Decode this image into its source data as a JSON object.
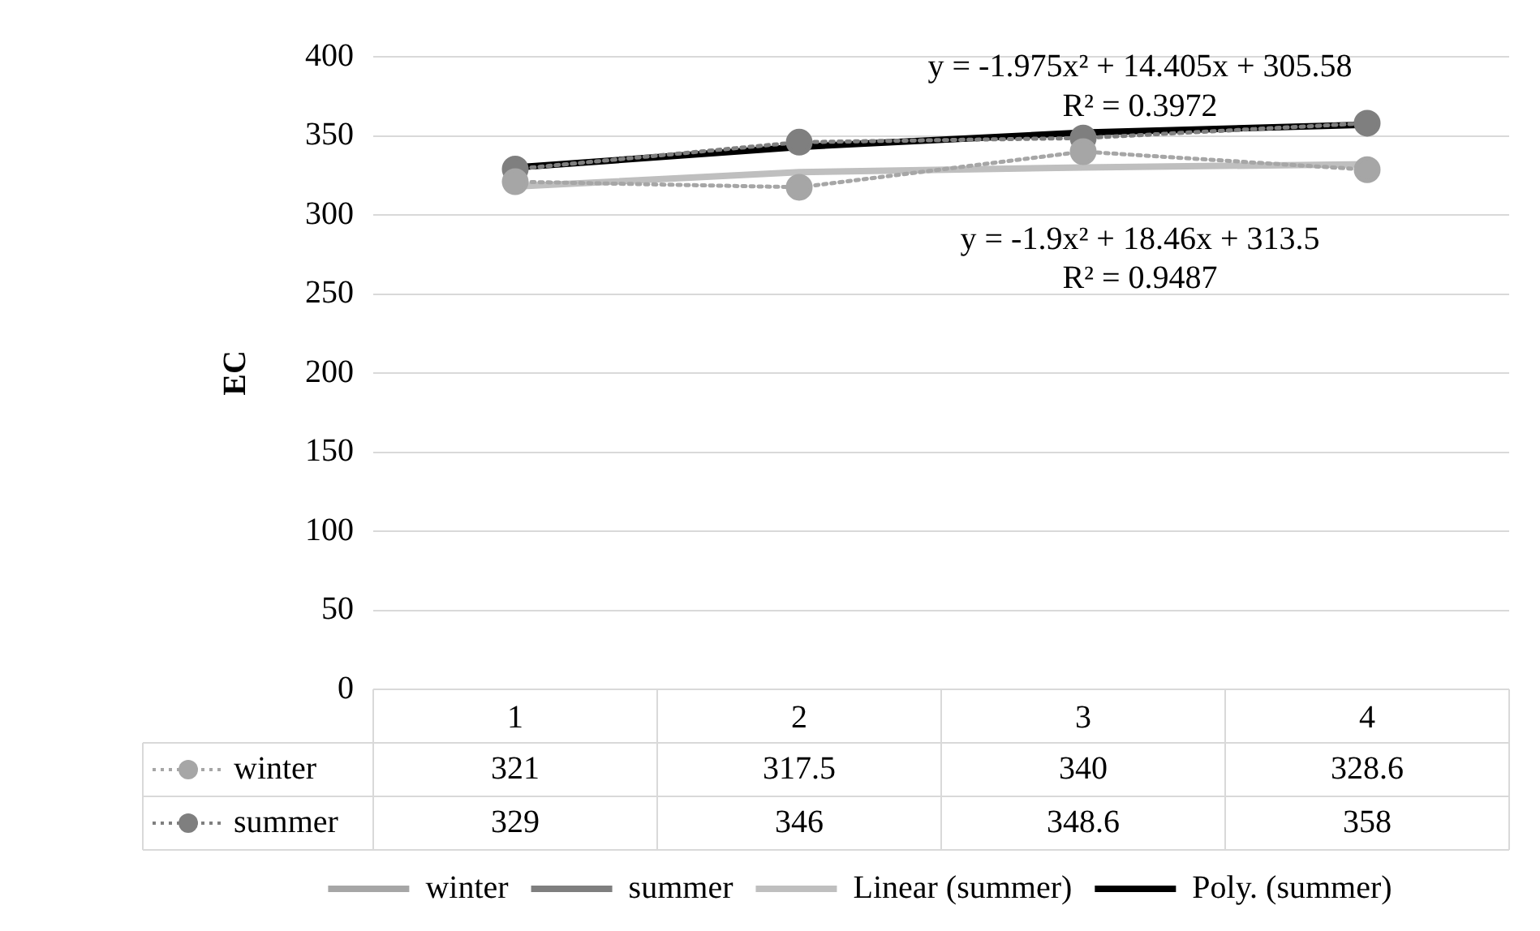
{
  "chart_data": {
    "type": "line",
    "categories": [
      "1",
      "2",
      "3",
      "4"
    ],
    "ylabel": "EC",
    "ylim": [
      0,
      400
    ],
    "yticks": [
      0,
      50,
      100,
      150,
      200,
      250,
      300,
      350,
      400
    ],
    "grid": "y",
    "legend": "bottom",
    "series": [
      {
        "name": "winter",
        "color": "#a6a6a6",
        "values": [
          321,
          317.5,
          340,
          328.6
        ],
        "marker": "circle",
        "line_style": "dotted",
        "value_labels": [
          "321",
          "317.5",
          "340",
          "328.6"
        ]
      },
      {
        "name": "summer",
        "color": "#7f7f7f",
        "values": [
          329,
          346,
          348.6,
          358
        ],
        "marker": "circle",
        "line_style": "dotted",
        "value_labels": [
          "329",
          "346",
          "348.6",
          "358"
        ]
      },
      {
        "name": "Linear (summer)",
        "color": "#bfbfbf",
        "values": [
          318,
          327,
          330,
          332
        ],
        "marker": "none",
        "line_style": "solid"
      },
      {
        "name": "Poly. (summer)",
        "color": "#000000",
        "values": [
          330,
          343,
          352,
          357
        ],
        "marker": "none",
        "line_style": "solid"
      }
    ],
    "annotations": [
      "y = -1.975x² + 14.405x + 305.58",
      "R² = 0.3972",
      "y = -1.9x² + 18.46x + 313.5",
      "R² = 0.9487"
    ]
  }
}
